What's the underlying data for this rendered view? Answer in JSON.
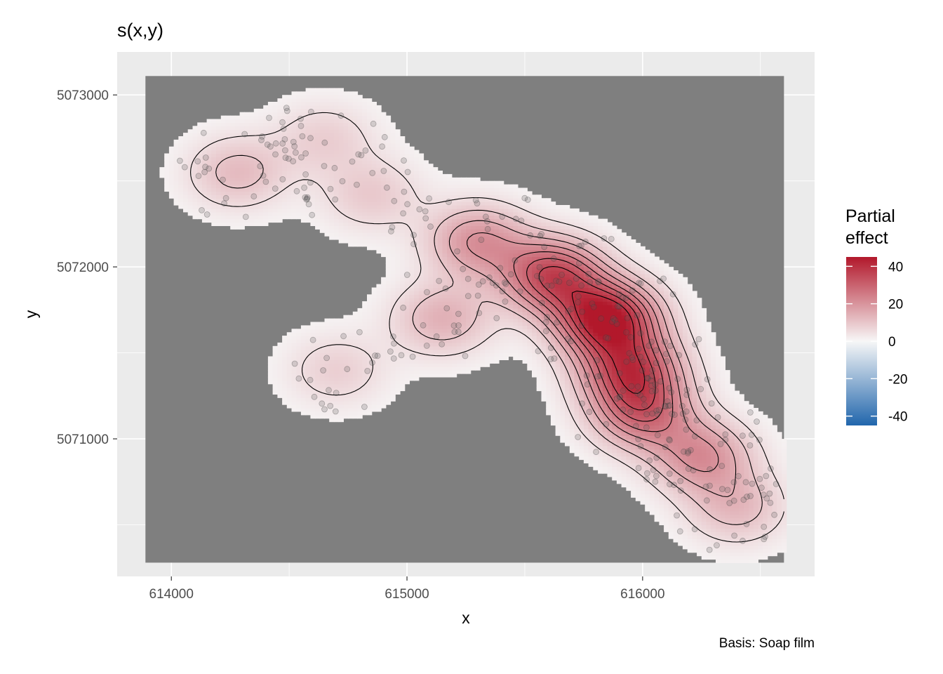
{
  "chart_data": {
    "type": "heatmap",
    "title": "s(x,y)",
    "caption": "Basis: Soap film",
    "xlabel": "x",
    "ylabel": "y",
    "xlim": [
      613770,
      616730
    ],
    "ylim": [
      5070200,
      5073250
    ],
    "x_ticks": [
      614000,
      615000,
      616000
    ],
    "x_tick_labels": [
      "614000",
      "615000",
      "616000"
    ],
    "y_ticks": [
      5071000,
      5072000,
      5073000
    ],
    "y_tick_labels": [
      "5071000",
      "5072000",
      "5073000"
    ],
    "grid": true,
    "legend": {
      "title_line1": "Partial",
      "title_line2": "effect",
      "placement": "right",
      "range": [
        -45,
        45
      ],
      "ticks": [
        40,
        20,
        0,
        -20,
        -40
      ],
      "tick_labels": [
        "40",
        "20",
        "0",
        "-20",
        "-40"
      ]
    },
    "colors": {
      "panel_background": "#EBEBEB",
      "outside_domain": "#7F7F7F",
      "low": "#2166AC",
      "mid": "#F7F7F7",
      "high": "#B2182B"
    },
    "domain_extent": {
      "x": [
        613890,
        616600
      ],
      "y": [
        5070280,
        5073110
      ]
    },
    "effect_peaks": [
      {
        "x": 614280,
        "y": 5072550,
        "effect": 12
      },
      {
        "x": 614650,
        "y": 5072750,
        "effect": 8
      },
      {
        "x": 614850,
        "y": 5072420,
        "effect": 9
      },
      {
        "x": 615150,
        "y": 5071700,
        "effect": 14
      },
      {
        "x": 614700,
        "y": 5071400,
        "effect": 8
      },
      {
        "x": 615300,
        "y": 5072150,
        "effect": 20
      },
      {
        "x": 615620,
        "y": 5071950,
        "effect": 34
      },
      {
        "x": 615850,
        "y": 5071700,
        "effect": 44
      },
      {
        "x": 615950,
        "y": 5071400,
        "effect": 32
      },
      {
        "x": 616000,
        "y": 5071150,
        "effect": 25
      },
      {
        "x": 616250,
        "y": 5070900,
        "effect": 20
      },
      {
        "x": 616400,
        "y": 5070600,
        "effect": 12
      }
    ]
  }
}
